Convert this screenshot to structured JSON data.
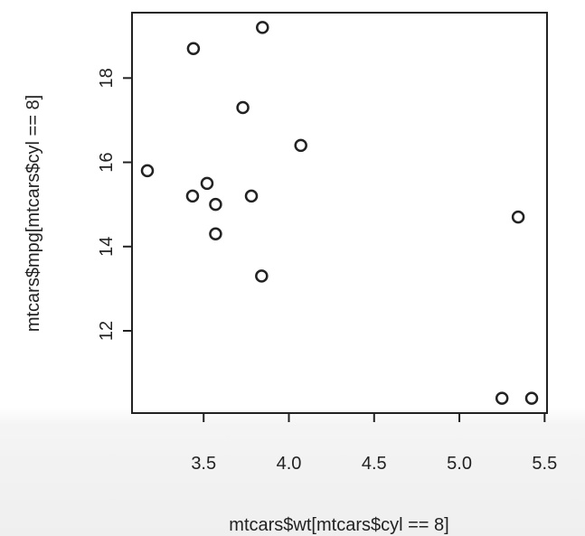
{
  "chart_data": {
    "type": "scatter",
    "xlabel": "mtcars$wt[mtcars$cyl == 8]",
    "ylabel": "mtcars$mpg[mtcars$cyl == 8]",
    "x": [
      3.44,
      3.57,
      4.07,
      3.73,
      3.78,
      5.25,
      5.424,
      5.345,
      3.52,
      3.435,
      3.84,
      3.845,
      3.17,
      3.57
    ],
    "y": [
      18.7,
      14.3,
      16.4,
      17.3,
      15.2,
      10.4,
      10.4,
      14.7,
      15.5,
      15.2,
      13.3,
      19.2,
      15.8,
      15.0
    ],
    "xlim": [
      3.17,
      5.424
    ],
    "ylim": [
      10.4,
      19.2
    ],
    "x_ticks": [
      "3.5",
      "4.0",
      "4.5",
      "5.0",
      "5.5"
    ],
    "y_ticks": [
      "12",
      "14",
      "16",
      "18"
    ],
    "grid": false,
    "marker": "open-circle"
  }
}
